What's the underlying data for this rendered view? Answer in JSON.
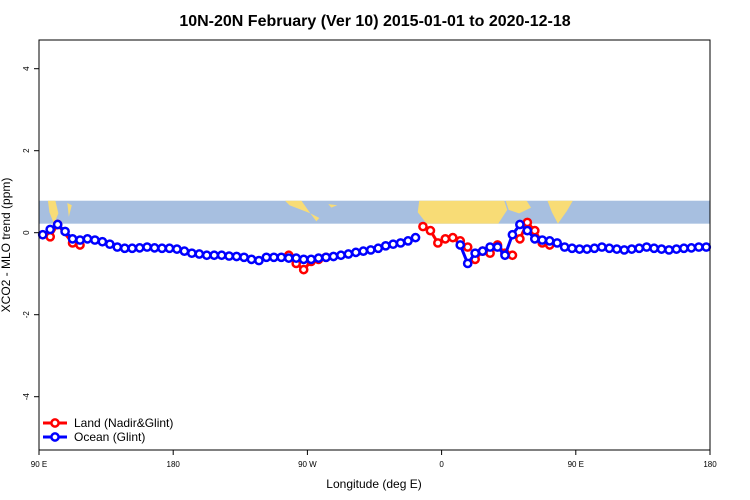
{
  "chart_data": {
    "type": "line",
    "title": "10N-20N February (Ver 10)   2015-01-01 to 2020-12-18",
    "xlabel": "Longitude (deg E)",
    "ylabel": "XCO2 - MLO trend (ppm)",
    "xlim": [
      90,
      450
    ],
    "ylim": [
      -5.3,
      4.7
    ],
    "x_ticks": [
      90,
      180,
      270,
      360,
      450
    ],
    "x_tick_labels": [
      "90 E",
      "180",
      "90 W",
      "0",
      "90 E",
      "180"
    ],
    "x_tick_values": [
      90,
      180,
      270,
      360,
      450,
      540
    ],
    "y_ticks": [
      -4,
      -2,
      0,
      2,
      4
    ],
    "y_tick_labels": [
      "-4",
      "-2",
      "0",
      "2",
      "4"
    ],
    "grid": false,
    "legend_position": "bottom-left",
    "map_strip": {
      "y_range": [
        0.22,
        0.78
      ],
      "ocean_color": "#a7bfe0",
      "land_color": "#f8dc76"
    },
    "series": [
      {
        "name": "Land (Nadir&Glint)",
        "color": "#ff0000",
        "segments": [
          {
            "x": [
              97.5,
              102.5,
              112.5,
              117.5
            ],
            "y": [
              -0.1,
              0.2,
              -0.25,
              -0.3
            ]
          },
          {
            "x": [
              257.5,
              262.5,
              267.5,
              272.5,
              277.5,
              282.5
            ],
            "y": [
              -0.55,
              -0.75,
              -0.9,
              -0.7,
              -0.65,
              -0.6
            ]
          },
          {
            "x": [
              347.5,
              352.5,
              357.5,
              362.5,
              367.5,
              372.5,
              377.5
            ],
            "y": [
              0.15,
              0.05,
              -0.25,
              -0.15,
              -0.12,
              -0.2,
              -0.35
            ]
          },
          {
            "x": [
              382.5,
              387.5,
              392.5,
              397.5,
              402.5,
              407.5
            ],
            "y": [
              -0.65,
              -0.45,
              -0.5,
              -0.3,
              -0.5,
              -0.55
            ]
          },
          {
            "x": [
              412.5,
              417.5,
              422.5,
              427.5,
              432.5
            ],
            "y": [
              -0.15,
              0.25,
              0.05,
              -0.25,
              -0.3
            ]
          }
        ]
      },
      {
        "name": "Ocean (Glint)",
        "color": "#0000ff",
        "segments": [
          {
            "x": [
              92.5,
              97.5,
              102.5,
              107.5,
              112.5,
              117.5,
              122.5,
              127.5,
              132.5,
              137.5,
              142.5,
              147.5,
              152.5,
              157.5,
              162.5,
              167.5,
              172.5,
              177.5,
              182.5,
              187.5,
              192.5,
              197.5,
              202.5,
              207.5,
              212.5,
              217.5,
              222.5,
              227.5,
              232.5,
              237.5,
              242.5,
              247.5,
              252.5,
              257.5,
              262.5,
              267.5,
              272.5,
              277.5,
              282.5,
              287.5,
              292.5,
              297.5,
              302.5,
              307.5,
              312.5,
              317.5,
              322.5,
              327.5,
              332.5,
              337.5,
              342.5
            ],
            "y": [
              -0.05,
              0.08,
              0.2,
              0.03,
              -0.15,
              -0.18,
              -0.15,
              -0.18,
              -0.22,
              -0.28,
              -0.35,
              -0.38,
              -0.38,
              -0.37,
              -0.35,
              -0.37,
              -0.38,
              -0.38,
              -0.4,
              -0.45,
              -0.5,
              -0.52,
              -0.55,
              -0.55,
              -0.55,
              -0.57,
              -0.58,
              -0.6,
              -0.65,
              -0.68,
              -0.6,
              -0.6,
              -0.6,
              -0.62,
              -0.62,
              -0.65,
              -0.65,
              -0.62,
              -0.6,
              -0.58,
              -0.55,
              -0.52,
              -0.48,
              -0.45,
              -0.42,
              -0.38,
              -0.32,
              -0.28,
              -0.25,
              -0.2,
              -0.12
            ]
          },
          {
            "x": [
              372.5,
              377.5,
              382.5,
              387.5,
              392.5,
              397.5,
              402.5,
              407.5,
              412.5,
              417.5,
              422.5,
              427.5,
              432.5,
              437.5,
              442.5,
              447.5,
              452.5,
              457.5,
              462.5,
              467.5,
              472.5,
              477.5,
              482.5,
              487.5,
              492.5,
              497.5,
              502.5,
              507.5,
              512.5,
              517.5,
              522.5,
              527.5,
              532.5,
              537.5
            ],
            "y": [
              -0.3,
              -0.75,
              -0.5,
              -0.45,
              -0.35,
              -0.35,
              -0.55,
              -0.05,
              0.2,
              0.05,
              -0.15,
              -0.18,
              -0.2,
              -0.25,
              -0.35,
              -0.38,
              -0.4,
              -0.4,
              -0.38,
              -0.35,
              -0.38,
              -0.4,
              -0.42,
              -0.4,
              -0.38,
              -0.35,
              -0.38,
              -0.4,
              -0.42,
              -0.4,
              -0.38,
              -0.37,
              -0.35,
              -0.35
            ]
          }
        ]
      }
    ]
  }
}
